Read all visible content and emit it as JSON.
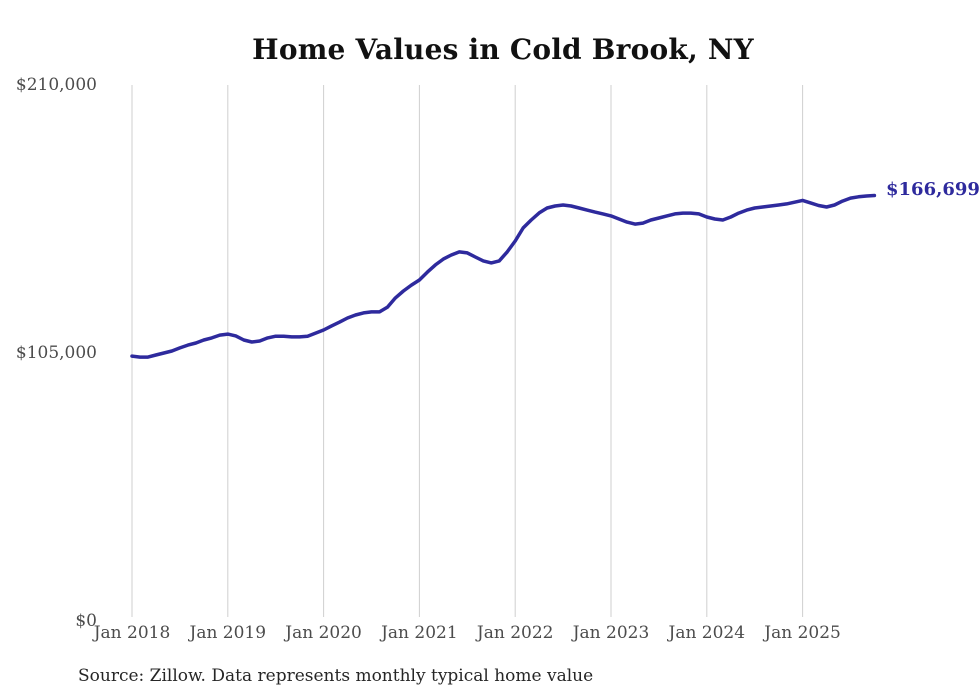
{
  "title": "Home Values in Cold Brook, NY",
  "end_label": "$166,699",
  "source_note": "Source: Zillow. Data represents monthly typical home value",
  "colors": {
    "line": "#2e2a9d",
    "grid": "#cfcfcf",
    "axis_text": "#4c4c4c",
    "title_text": "#111111",
    "source_text": "#262626"
  },
  "chart_data": {
    "type": "line",
    "title": "Home Values in Cold Brook, NY",
    "xlabel": "",
    "ylabel": "",
    "ylim": [
      0,
      210000
    ],
    "grid": "vertical-only",
    "legend": "none",
    "y_ticks": [
      {
        "value": 0,
        "label": "$0"
      },
      {
        "value": 105000,
        "label": "$105,000"
      },
      {
        "value": 210000,
        "label": "$210,000"
      }
    ],
    "x_tick_labels": [
      "Jan 2018",
      "Jan 2019",
      "Jan 2020",
      "Jan 2021",
      "Jan 2022",
      "Jan 2023",
      "Jan 2024",
      "Jan 2025"
    ],
    "series": [
      {
        "name": "Typical home value",
        "x_start": "2018-01",
        "frequency": "monthly",
        "values": [
          103800,
          103400,
          103400,
          104200,
          105000,
          105800,
          107000,
          108100,
          108900,
          110100,
          110900,
          112000,
          112400,
          111700,
          110100,
          109300,
          109700,
          110900,
          111600,
          111600,
          111300,
          111300,
          111600,
          112800,
          114000,
          115600,
          117100,
          118700,
          119900,
          120700,
          121100,
          121100,
          123000,
          126600,
          129300,
          131600,
          133600,
          136700,
          139500,
          141800,
          143400,
          144600,
          144200,
          142600,
          141100,
          140300,
          141100,
          144600,
          148900,
          154000,
          157100,
          159900,
          161800,
          162600,
          163000,
          162600,
          161800,
          161000,
          160200,
          159500,
          158700,
          157500,
          156300,
          155500,
          155900,
          157100,
          157900,
          158700,
          159500,
          159800,
          159800,
          159500,
          158300,
          157500,
          157100,
          158300,
          159800,
          161000,
          161800,
          162200,
          162600,
          163000,
          163400,
          164100,
          164800,
          163800,
          162800,
          162200,
          163000,
          164500,
          165700,
          166200,
          166500,
          166699
        ]
      }
    ],
    "end_value": 166699
  }
}
